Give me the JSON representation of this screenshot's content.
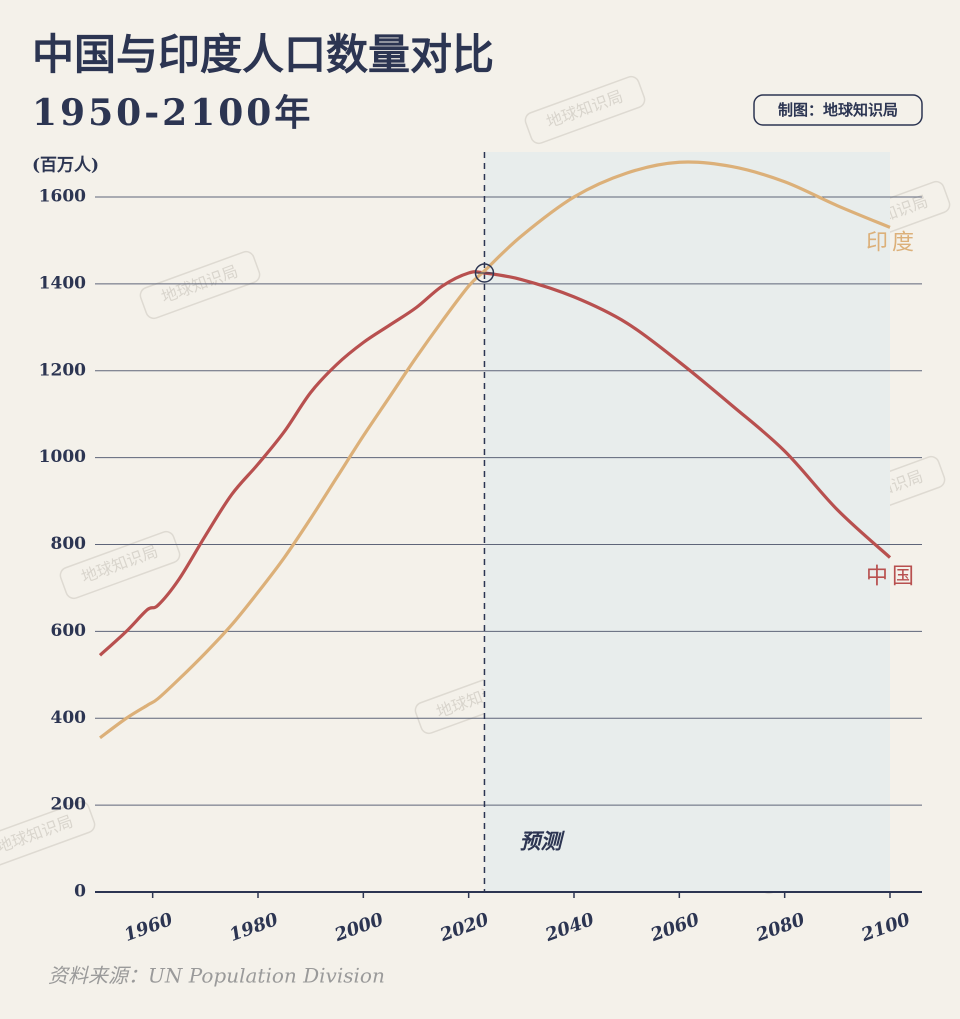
{
  "chart_data": {
    "type": "line",
    "title": "中国与印度人口数量对比",
    "subtitle": "1950-2100年",
    "y_label": "(百万人)",
    "credit": "制图：地球知识局",
    "source": "资料来源：UN Population Division",
    "forecast_label": "预测",
    "forecast_start": 2023,
    "watermark": "地球知识局",
    "x": [
      1950,
      1955,
      1959,
      1961,
      1965,
      1970,
      1975,
      1980,
      1985,
      1990,
      1995,
      2000,
      2005,
      2010,
      2015,
      2020,
      2023,
      2030,
      2040,
      2050,
      2060,
      2070,
      2080,
      2090,
      2100
    ],
    "series": [
      {
        "name": "中国",
        "color": "#b8504f",
        "values": [
          545,
          600,
          650,
          660,
          720,
          820,
          915,
          985,
          1060,
          1150,
          1215,
          1265,
          1305,
          1345,
          1395,
          1425,
          1425,
          1410,
          1370,
          1310,
          1220,
          1120,
          1015,
          880,
          770
        ]
      },
      {
        "name": "印度",
        "color": "#dcb079",
        "values": [
          355,
          400,
          430,
          445,
          490,
          550,
          615,
          690,
          770,
          860,
          955,
          1050,
          1140,
          1230,
          1315,
          1395,
          1430,
          1510,
          1600,
          1655,
          1680,
          1670,
          1635,
          1580,
          1530
        ]
      }
    ],
    "xlim": [
      1950,
      2100
    ],
    "xticks": [
      1960,
      1980,
      2000,
      2020,
      2040,
      2060,
      2080,
      2100
    ],
    "ylim": [
      0,
      1600
    ],
    "yticks": [
      0,
      200,
      400,
      600,
      800,
      1000,
      1200,
      1400,
      1600
    ],
    "grid": true
  }
}
